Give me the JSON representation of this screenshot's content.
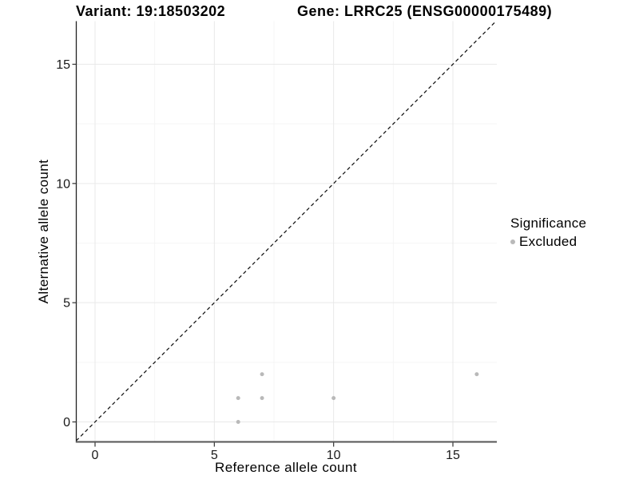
{
  "figure": {
    "title_left": "Variant: 19:18503202",
    "title_right": "Gene: LRRC25 (ENSG00000175489)"
  },
  "chart_data": {
    "type": "scatter",
    "xlabel": "Reference allele count",
    "ylabel": "Alternative allele count",
    "xlim": [
      -0.79,
      16.84
    ],
    "ylim": [
      -0.84,
      16.81
    ],
    "x_major_ticks": [
      0,
      5,
      10,
      15
    ],
    "y_major_ticks": [
      0,
      5,
      10,
      15
    ],
    "x_minor_ticks": [
      2.5,
      7.5,
      12.5
    ],
    "y_minor_ticks": [
      2.5,
      7.5,
      12.5
    ],
    "grid": "major+minor",
    "identity_line": {
      "slope": 1,
      "intercept": 0,
      "style": "dashed",
      "color": "#1a1a1a"
    },
    "series": [
      {
        "name": "Excluded",
        "color": "#b9b9b9",
        "points": [
          [
            6,
            0
          ],
          [
            6,
            1
          ],
          [
            7,
            1
          ],
          [
            7,
            2
          ],
          [
            10,
            1
          ],
          [
            16,
            2
          ]
        ]
      }
    ],
    "legend": {
      "title": "Significance",
      "position": "right",
      "items": [
        {
          "label": "Excluded",
          "color": "#b9b9b9"
        }
      ]
    },
    "colors": {
      "background": "#ffffff",
      "grid_major": "#e9e9e9",
      "grid_minor": "#f5f5f5",
      "axis_line_left": "#222222",
      "axis_line_bottom": "#555555",
      "tick_mark": "#333333",
      "tick_text": "#191919"
    }
  }
}
